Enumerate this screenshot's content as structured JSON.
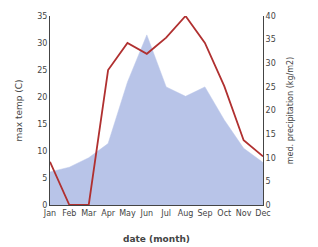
{
  "chart_data": {
    "type": "line",
    "categories": [
      "Jan",
      "Feb",
      "Mar",
      "Apr",
      "May",
      "Jun",
      "Jul",
      "Aug",
      "Sep",
      "Oct",
      "Nov",
      "Dec"
    ],
    "series": [
      {
        "type": "area",
        "color": "#b8c4e8",
        "axis": "y2",
        "values": [
          7,
          8,
          10,
          13,
          26,
          36,
          25,
          23,
          25,
          18,
          12,
          9
        ]
      },
      {
        "type": "line",
        "color": "#b03030",
        "values": [
          8,
          0,
          0,
          25,
          30,
          28,
          31,
          35,
          30,
          22,
          12,
          9
        ]
      }
    ],
    "xlabel": "date (month)",
    "ylabel": "max temp (C)",
    "y2label": "med. precipitation (kg/m2)",
    "ylim": [
      0,
      35
    ],
    "yticks": [
      0,
      5,
      10,
      15,
      20,
      25,
      30,
      35
    ],
    "y2lim": [
      0,
      40
    ],
    "y2ticks": [
      0,
      5,
      10,
      15,
      20,
      25,
      30,
      35,
      40
    ],
    "grid": false
  }
}
